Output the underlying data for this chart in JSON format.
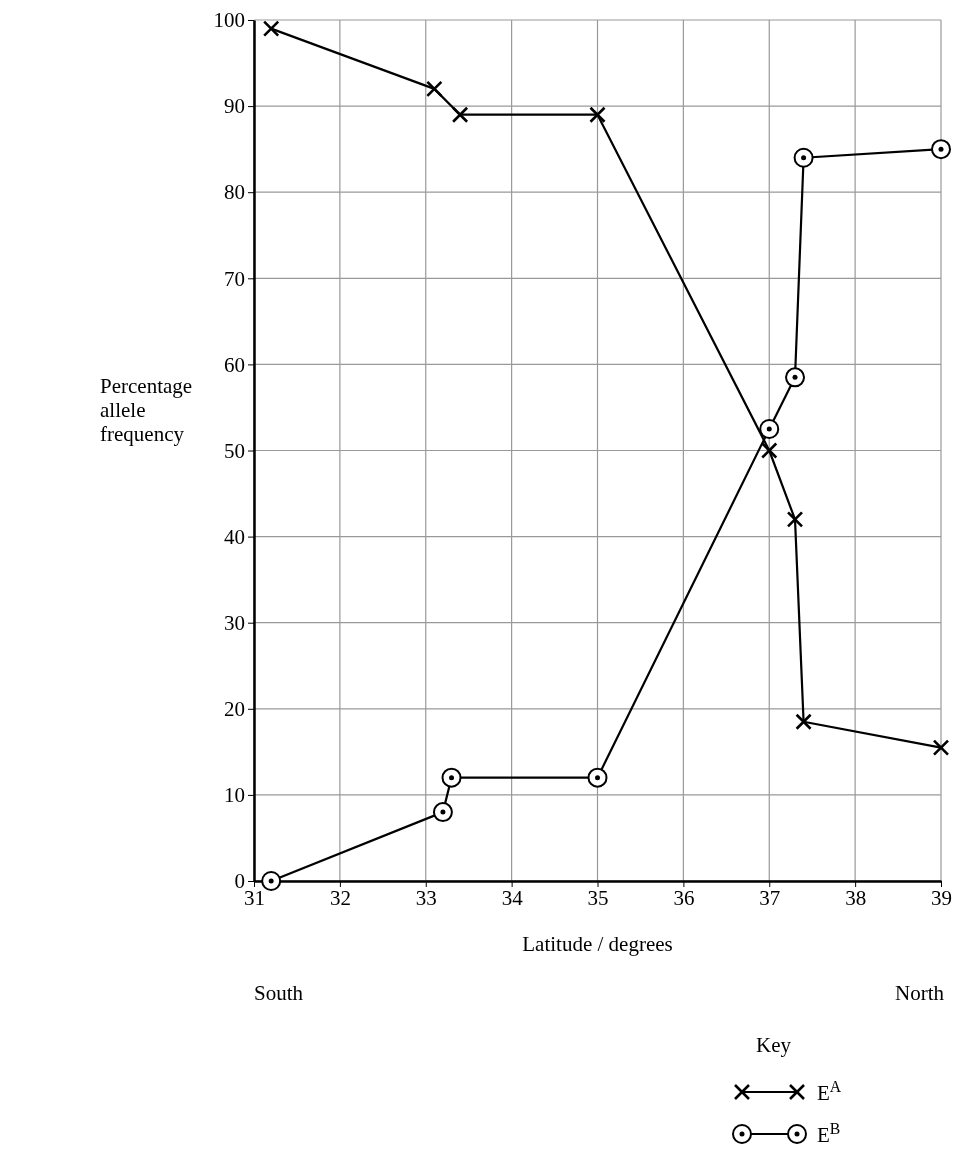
{
  "chart_data": {
    "type": "line",
    "xlabel": "Latitude / degrees",
    "ylabel": "Percentage allele frequency",
    "xlim": [
      31,
      39
    ],
    "xticks": [
      31,
      32,
      33,
      34,
      35,
      36,
      37,
      38,
      39
    ],
    "ylim": [
      0,
      100
    ],
    "yticks": [
      0,
      10,
      20,
      30,
      40,
      50,
      60,
      70,
      80,
      90,
      100
    ],
    "grid": true,
    "legend": "bottom right",
    "legend_title": "Key",
    "line_style": "solid",
    "annotations": [
      "South",
      "North"
    ],
    "series": [
      {
        "name": "E$^{A}$",
        "color": "#000000",
        "marker": "cross",
        "x": [
          31.2,
          33.1,
          33.4,
          35,
          37,
          37.3,
          37.4,
          39
        ],
        "values": [
          99,
          92,
          89,
          89,
          50,
          42,
          18.5,
          15.5
        ]
      },
      {
        "name": "E$^{B}$",
        "color": "#000000",
        "marker": "circle",
        "x": [
          31.2,
          33.2,
          33.3,
          35,
          37,
          37.3,
          37.4,
          39
        ],
        "values": [
          0,
          8,
          12,
          12,
          52.5,
          58.5,
          84,
          85
        ]
      }
    ]
  }
}
